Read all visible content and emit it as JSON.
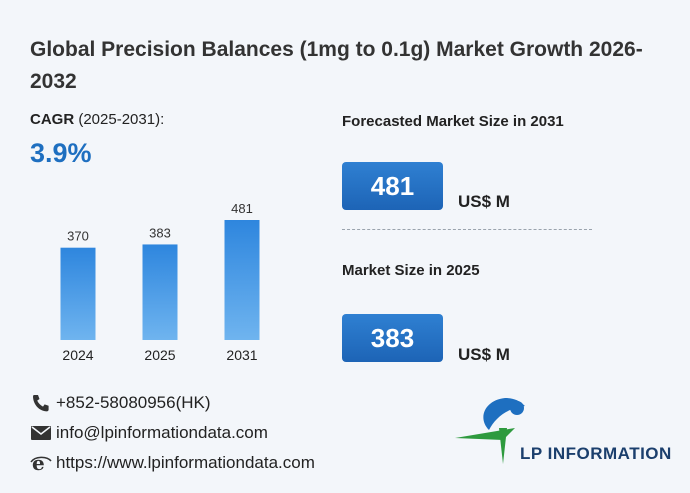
{
  "header": {
    "title": "Global Precision Balances (1mg to 0.1g) Market Growth 2026-2032"
  },
  "cagr": {
    "label_bold": "CAGR",
    "label_rest": " (2025-2031):",
    "value": "3.9%"
  },
  "chart_data": {
    "type": "bar",
    "categories": [
      "2024",
      "2025",
      "2031"
    ],
    "values": [
      370,
      383,
      481
    ],
    "data_labels": [
      "370",
      "383",
      "481"
    ],
    "title": "",
    "xlabel": "",
    "ylabel": "",
    "ylim": [
      0,
      500
    ],
    "grid": false,
    "bar_color": "#2a7fd4"
  },
  "forecast": {
    "label": "Forecasted Market Size in 2031",
    "value": "481",
    "unit": "US$ M"
  },
  "current": {
    "label": "Market Size in 2025",
    "value": "383",
    "unit": "US$ M"
  },
  "contacts": {
    "phone": "+852-58080956(HK)",
    "email": "info@lpinformationdata.com",
    "website": "https://www.lpinformationdata.com"
  },
  "brand": {
    "name": "LP INFORMATION",
    "accent_blue": "#1e6fc0",
    "accent_green": "#2e9a3e"
  },
  "icons": {
    "phone": "phone-icon",
    "email": "email-icon",
    "web": "web-icon",
    "logo": "lp-logo-icon"
  }
}
